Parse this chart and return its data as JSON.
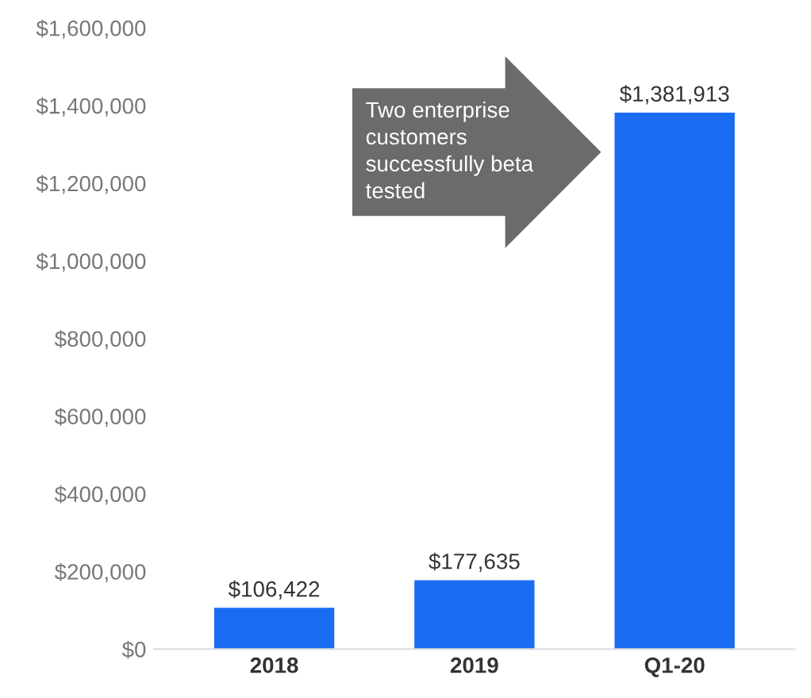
{
  "chart_data": {
    "type": "bar",
    "categories": [
      "2018",
      "2019",
      "Q1-20"
    ],
    "values": [
      106422,
      177635,
      1381913
    ],
    "color": "#1a6df2",
    "value_labels": [
      "$106,422",
      "$177,635",
      "$1,381,913"
    ],
    "ylim": [
      0,
      1600000
    ],
    "yticks": [
      {
        "value": 0,
        "label": "$0"
      },
      {
        "value": 200000,
        "label": "$200,000"
      },
      {
        "value": 400000,
        "label": "$400,000"
      },
      {
        "value": 600000,
        "label": "$600,000"
      },
      {
        "value": 800000,
        "label": "$800,000"
      },
      {
        "value": 1000000,
        "label": "$1,000,000"
      },
      {
        "value": 1200000,
        "label": "$1,200,000"
      },
      {
        "value": 1400000,
        "label": "$1,400,000"
      },
      {
        "value": 1600000,
        "label": "$1,600,000"
      }
    ],
    "grid": false,
    "annotations": [
      "Two enterprise\ncustomers\nsuccessfully beta\ntested"
    ]
  }
}
